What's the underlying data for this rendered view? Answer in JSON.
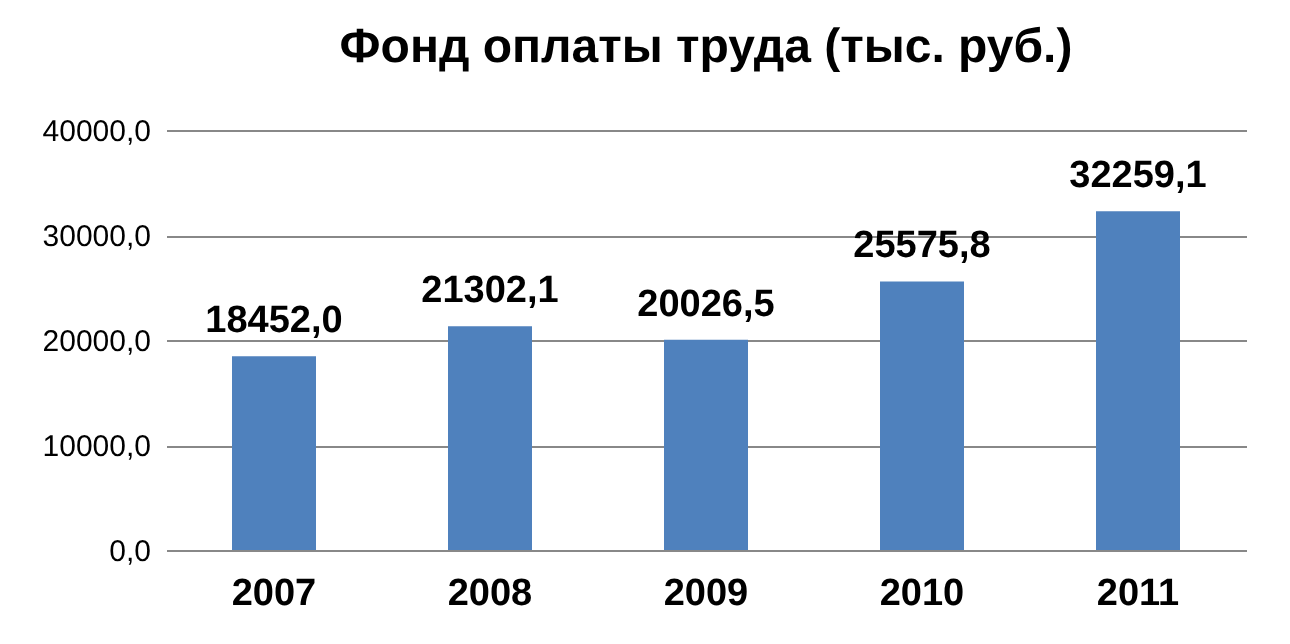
{
  "chart_data": {
    "type": "bar",
    "title": "Фонд оплаты труда (тыс. руб.)",
    "categories": [
      "2007",
      "2008",
      "2009",
      "2010",
      "2011"
    ],
    "values": [
      18452.0,
      21302.1,
      20026.5,
      25575.8,
      32259.1
    ],
    "value_labels": [
      "18452,0",
      "21302,1",
      "20026,5",
      "25575,8",
      "32259,1"
    ],
    "color": "#4f81bd",
    "ylim": [
      0,
      40000
    ],
    "yticks": [
      {
        "value": 0,
        "label": "0,0"
      },
      {
        "value": 10000,
        "label": "10000,0"
      },
      {
        "value": 20000,
        "label": "20000,0"
      },
      {
        "value": 30000,
        "label": "30000,0"
      },
      {
        "value": 40000,
        "label": "40000,0"
      }
    ],
    "grid": true
  }
}
